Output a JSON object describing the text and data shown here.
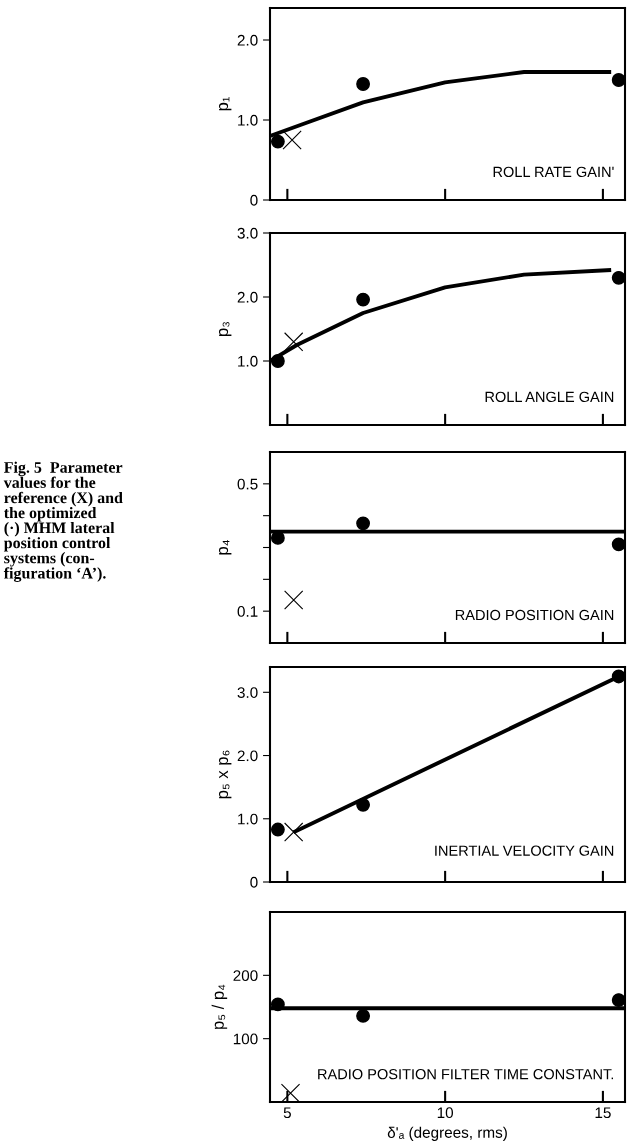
{
  "chart_data": [
    {
      "type": "scatter",
      "ylabel": "p₁",
      "xlim": [
        4.45,
        15.7
      ],
      "xticks": [
        5,
        10,
        15
      ],
      "ylim": [
        0,
        2.4
      ],
      "yticks": [
        0,
        {
          "value": 1,
          "label": "1.0"
        },
        {
          "value": 2,
          "label": "2.0"
        }
      ],
      "tick_labels": "y",
      "grid": false,
      "legend": false,
      "annotations": [
        "ROLL RATE GAIN'"
      ],
      "series": [
        {
          "type": "line",
          "color": "#000000",
          "marker": "none",
          "line_style": "solid",
          "x": [
            4.45,
            5.5,
            7.4,
            10,
            12.5,
            15.2
          ],
          "values": [
            0.8,
            0.95,
            1.22,
            1.47,
            1.6,
            1.6
          ]
        },
        {
          "color": "#000000",
          "marker": "circle",
          "x": [
            4.7,
            7.4,
            15.5
          ],
          "values": [
            0.73,
            1.45,
            1.5
          ]
        },
        {
          "color": "#000000",
          "marker": "cross",
          "x": [
            5.15
          ],
          "values": [
            0.75
          ]
        }
      ]
    },
    {
      "type": "scatter",
      "ylabel": "p₃",
      "xlim": [
        4.45,
        15.7
      ],
      "xticks": [
        5,
        10,
        15
      ],
      "ylim": [
        0,
        3.0
      ],
      "yticks": [
        {
          "value": 1,
          "label": "1.0"
        },
        {
          "value": 2,
          "label": "2.0"
        },
        {
          "value": 3,
          "label": "3.0"
        }
      ],
      "tick_labels": "y",
      "grid": false,
      "legend": false,
      "annotations": [
        "ROLL ANGLE GAIN"
      ],
      "series": [
        {
          "type": "line",
          "color": "#000000",
          "marker": "none",
          "line_style": "solid",
          "x": [
            4.45,
            5.3,
            7.4,
            10,
            12.5,
            15.2
          ],
          "values": [
            1.0,
            1.25,
            1.75,
            2.15,
            2.35,
            2.42
          ]
        },
        {
          "color": "#000000",
          "marker": "circle",
          "x": [
            4.7,
            7.4,
            15.5
          ],
          "values": [
            1.0,
            1.96,
            2.3
          ]
        },
        {
          "color": "#000000",
          "marker": "cross",
          "x": [
            5.2
          ],
          "values": [
            1.3
          ]
        }
      ]
    },
    {
      "type": "scatter",
      "ylabel": "p₄",
      "xlim": [
        4.45,
        15.7
      ],
      "xticks": [
        5,
        10,
        15
      ],
      "ylim": [
        0,
        0.6
      ],
      "yticks": [
        {
          "value": 0.1,
          "label": "0.1"
        },
        {
          "value": 0.2,
          "label": null
        },
        {
          "value": 0.3,
          "label": null
        },
        {
          "value": 0.4,
          "label": null
        },
        {
          "value": 0.5,
          "label": "0.5"
        }
      ],
      "tick_labels": "y",
      "grid": false,
      "legend": false,
      "annotations": [
        "RADIO POSITION GAIN",
        "Fig. 5  Parameter\nvalues for the\nreference (X) and\nthe optimized\n(·) MHM lateral\nposition control\nsystems (con-\nfiguration ‘A’)."
      ],
      "series": [
        {
          "type": "line",
          "color": "#000000",
          "marker": "none",
          "line_style": "solid",
          "x": [
            4.45,
            15.7
          ],
          "values": [
            0.35,
            0.35
          ]
        },
        {
          "color": "#000000",
          "marker": "circle",
          "x": [
            4.7,
            7.4,
            15.5
          ],
          "values": [
            0.33,
            0.376,
            0.31
          ]
        },
        {
          "color": "#000000",
          "marker": "cross",
          "x": [
            5.2
          ],
          "values": [
            0.135
          ]
        }
      ]
    },
    {
      "type": "scatter",
      "ylabel": "p₅ x p₆",
      "xlim": [
        4.45,
        15.7
      ],
      "xticks": [
        5,
        10,
        15
      ],
      "ylim": [
        0,
        3.4
      ],
      "yticks": [
        0,
        {
          "value": 1,
          "label": "1.0"
        },
        {
          "value": 2,
          "label": "2.0"
        },
        {
          "value": 3,
          "label": "3.0"
        }
      ],
      "tick_labels": "y",
      "grid": false,
      "legend": false,
      "annotations": [
        "INERTIAL VELOCITY GAIN"
      ],
      "series": [
        {
          "type": "line",
          "color": "#000000",
          "marker": "none",
          "line_style": "solid",
          "x": [
            5.25,
            15.5
          ],
          "values": [
            0.8,
            3.25
          ]
        },
        {
          "color": "#000000",
          "marker": "circle",
          "x": [
            4.7,
            7.4,
            15.5
          ],
          "values": [
            0.83,
            1.22,
            3.25
          ]
        },
        {
          "color": "#000000",
          "marker": "cross",
          "x": [
            5.2
          ],
          "values": [
            0.79
          ]
        }
      ]
    },
    {
      "type": "scatter",
      "ylabel": "p₅ / p₄",
      "xlabel": "δ'ₐ (degrees, rms)",
      "xlim": [
        4.45,
        15.7
      ],
      "xticks": [
        5,
        10,
        15
      ],
      "ylim": [
        0,
        300
      ],
      "yticks": [
        100,
        200
      ],
      "grid": false,
      "legend": false,
      "annotations": [
        "RADIO POSITION FILTER TIME CONSTANT."
      ],
      "series": [
        {
          "type": "line",
          "color": "#000000",
          "marker": "none",
          "line_style": "solid",
          "x": [
            4.45,
            15.7
          ],
          "values": [
            148,
            148
          ]
        },
        {
          "color": "#000000",
          "marker": "circle",
          "x": [
            4.7,
            7.4,
            15.5
          ],
          "values": [
            154,
            136,
            161
          ]
        },
        {
          "color": "#000000",
          "marker": "cross",
          "x": [
            5.1
          ],
          "values": [
            14
          ]
        }
      ]
    }
  ]
}
